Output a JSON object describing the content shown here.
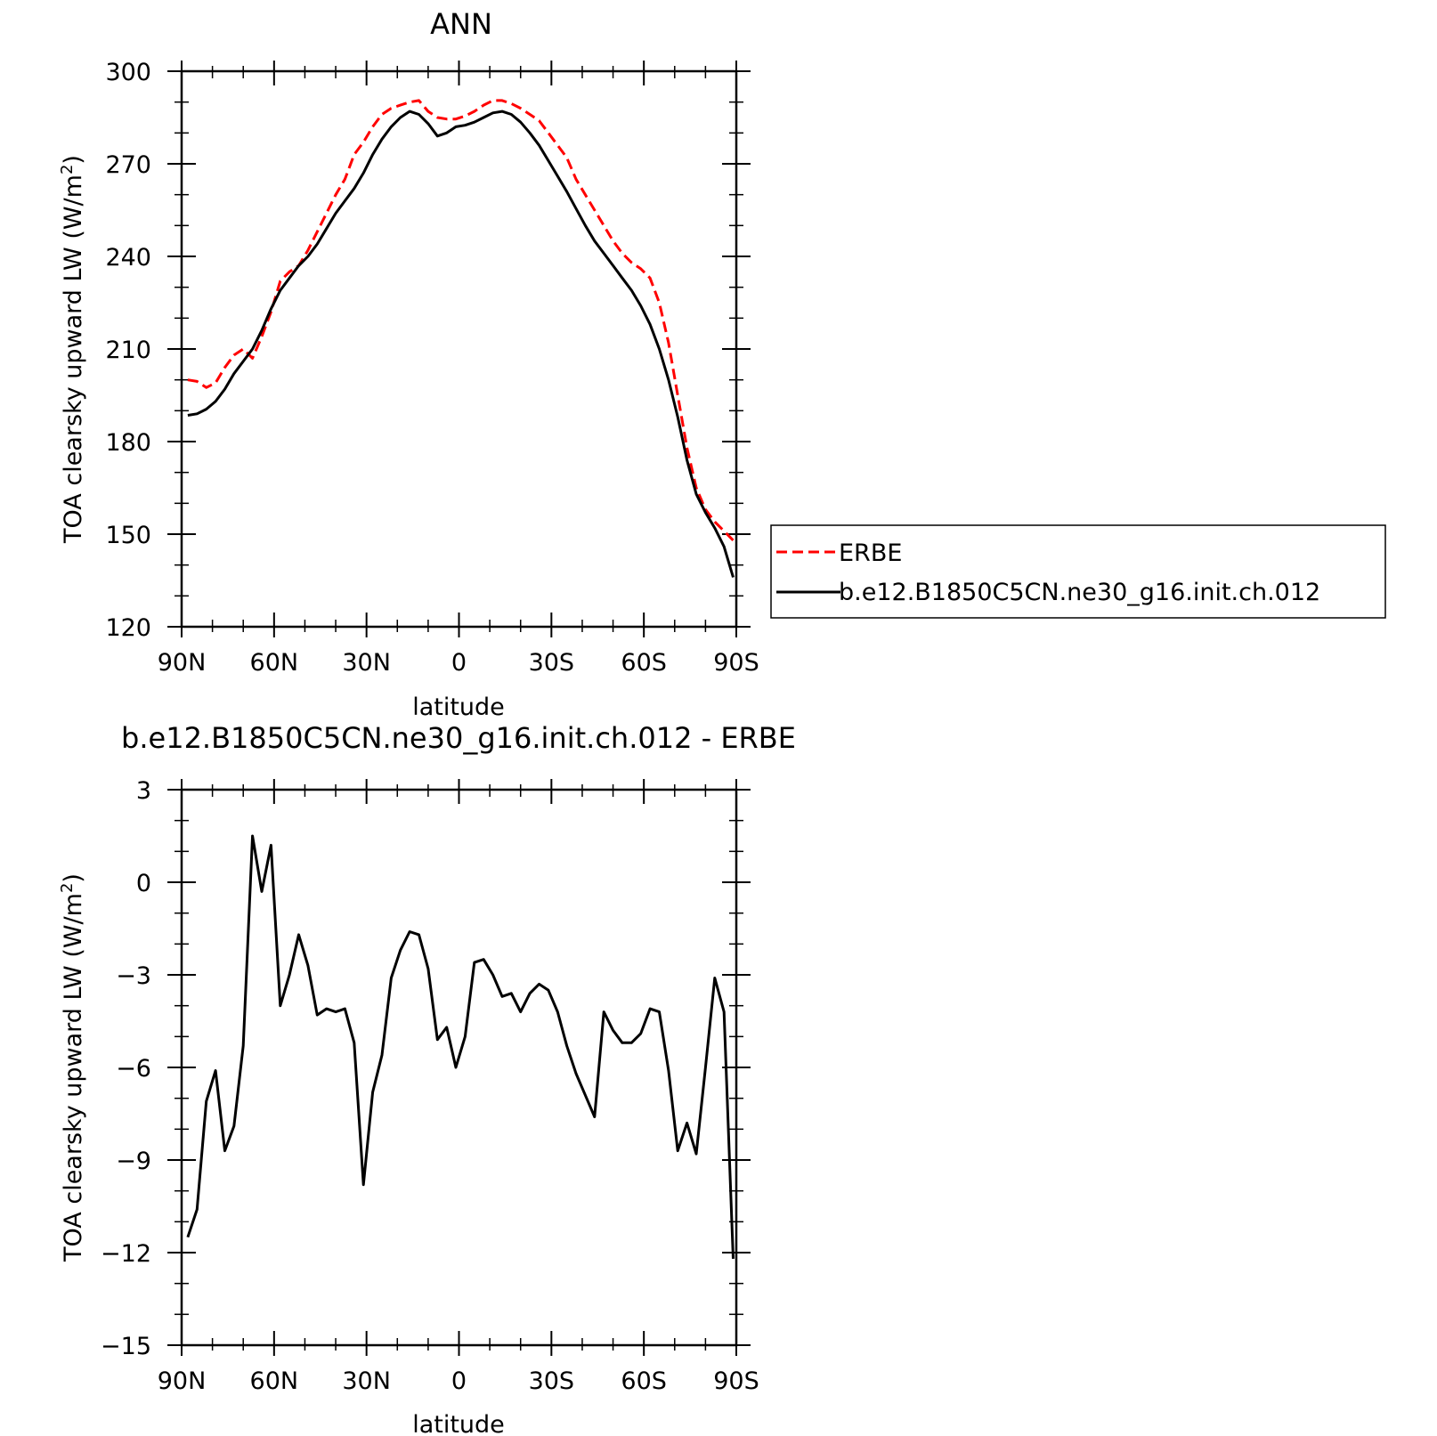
{
  "chart_data": [
    {
      "type": "line",
      "title": "ANN",
      "xlabel": "latitude",
      "ylabel": "TOA clearsky upward LW (W/m",
      "ylabel_sup": "2",
      "ylabel_close": ")",
      "xlim": [
        90,
        -90
      ],
      "ylim": [
        120,
        300
      ],
      "x_ticks": [
        90,
        60,
        30,
        0,
        -30,
        -60,
        -90
      ],
      "x_tick_labels": [
        "90N",
        "60N",
        "30N",
        "0",
        "30S",
        "60S",
        "90S"
      ],
      "y_ticks": [
        120,
        150,
        180,
        210,
        240,
        270,
        300
      ],
      "y_tick_labels": [
        "120",
        "150",
        "180",
        "210",
        "240",
        "270",
        "300"
      ],
      "legend": {
        "placement": "right",
        "entries": [
          "ERBE",
          "b.e12.B1850C5CN.ne30_g16.init.ch.012"
        ]
      },
      "series": [
        {
          "name": "ERBE",
          "color": "#ff0000",
          "dash": "dashed",
          "x": [
            88,
            85,
            82,
            79,
            76,
            73,
            70,
            67,
            64,
            61,
            58,
            55,
            52,
            49,
            46,
            43,
            40,
            37,
            34,
            31,
            28,
            25,
            22,
            19,
            16,
            13,
            10,
            7,
            4,
            1,
            -2,
            -5,
            -8,
            -11,
            -14,
            -17,
            -20,
            -23,
            -26,
            -29,
            -32,
            -35,
            -38,
            -41,
            -44,
            -47,
            -50,
            -53,
            -56,
            -59,
            -62,
            -65,
            -68,
            -71,
            -74,
            -77,
            -80,
            -83,
            -86,
            -89
          ],
          "y": [
            200,
            199.5,
            197.5,
            199,
            204,
            208,
            210,
            207,
            214,
            222,
            232,
            235,
            237,
            242,
            248,
            254,
            260,
            265,
            273,
            277,
            282,
            286,
            288,
            289,
            290,
            290.5,
            287,
            285,
            284.5,
            284.5,
            285.5,
            287,
            289,
            290.5,
            290.5,
            289.5,
            288,
            286,
            284,
            280,
            276,
            272,
            265,
            260,
            255,
            250,
            245,
            241,
            238,
            236,
            233,
            225,
            212,
            195,
            178,
            165,
            158,
            154,
            151,
            148
          ]
        },
        {
          "name": "b.e12.B1850C5CN.ne30_g16.init.ch.012",
          "color": "#000000",
          "dash": "solid",
          "x": [
            88,
            85,
            82,
            79,
            76,
            73,
            70,
            67,
            64,
            61,
            58,
            55,
            52,
            49,
            46,
            43,
            40,
            37,
            34,
            31,
            28,
            25,
            22,
            19,
            16,
            13,
            10,
            7,
            4,
            1,
            -2,
            -5,
            -8,
            -11,
            -14,
            -17,
            -20,
            -23,
            -26,
            -29,
            -32,
            -35,
            -38,
            -41,
            -44,
            -47,
            -50,
            -53,
            -56,
            -59,
            -62,
            -65,
            -68,
            -71,
            -74,
            -77,
            -80,
            -83,
            -86,
            -89
          ],
          "y": [
            188.5,
            189,
            190.5,
            193,
            197,
            202,
            206,
            210,
            216,
            223,
            229,
            233,
            237,
            240,
            244,
            249,
            254,
            258,
            262,
            267,
            273,
            278,
            282,
            285,
            287,
            286,
            283,
            279,
            280,
            282,
            282.5,
            283.5,
            285,
            286.5,
            287,
            286,
            283.5,
            280,
            276,
            271,
            266,
            261,
            255.5,
            250,
            245,
            241,
            237,
            233,
            229,
            224,
            218,
            210,
            200,
            188,
            174,
            163,
            157,
            152,
            146,
            136
          ]
        }
      ]
    },
    {
      "type": "line",
      "title": "b.e12.B1850C5CN.ne30_g16.init.ch.012 - ERBE",
      "xlabel": "latitude",
      "ylabel": "TOA clearsky upward LW (W/m",
      "ylabel_sup": "2",
      "ylabel_close": ")",
      "xlim": [
        90,
        -90
      ],
      "ylim": [
        -15,
        3
      ],
      "x_ticks": [
        90,
        60,
        30,
        0,
        -30,
        -60,
        -90
      ],
      "x_tick_labels": [
        "90N",
        "60N",
        "30N",
        "0",
        "30S",
        "60S",
        "90S"
      ],
      "y_ticks": [
        -15,
        -12,
        -9,
        -6,
        -3,
        0,
        3
      ],
      "y_tick_labels": [
        "−15",
        "−12",
        "−9",
        "−6",
        "−3",
        "0",
        "3"
      ],
      "series": [
        {
          "color": "#000000",
          "dash": "solid",
          "x": [
            88,
            85,
            82,
            79,
            76,
            73,
            70,
            67,
            64,
            61,
            58,
            55,
            52,
            49,
            46,
            43,
            40,
            37,
            34,
            31,
            28,
            25,
            22,
            19,
            16,
            13,
            10,
            7,
            4,
            1,
            -2,
            -5,
            -8,
            -11,
            -14,
            -17,
            -20,
            -23,
            -26,
            -29,
            -32,
            -35,
            -38,
            -41,
            -44,
            -47,
            -50,
            -53,
            -56,
            -59,
            -62,
            -65,
            -68,
            -71,
            -74,
            -77,
            -80,
            -83,
            -86,
            -89
          ],
          "y": [
            -11.5,
            -10.6,
            -7.1,
            -6.1,
            -8.7,
            -7.9,
            -5.3,
            1.5,
            -0.3,
            1.2,
            -4.0,
            -3.0,
            -1.7,
            -2.7,
            -4.3,
            -4.1,
            -4.2,
            -4.1,
            -5.2,
            -9.8,
            -6.8,
            -5.6,
            -3.1,
            -2.2,
            -1.6,
            -1.7,
            -2.8,
            -5.1,
            -4.7,
            -6.0,
            -5.0,
            -2.6,
            -2.5,
            -3.0,
            -3.7,
            -3.6,
            -4.2,
            -3.6,
            -3.3,
            -3.5,
            -4.2,
            -5.3,
            -6.2,
            -6.9,
            -7.6,
            -4.2,
            -4.8,
            -5.2,
            -5.2,
            -4.9,
            -4.1,
            -4.2,
            -6.1,
            -8.7,
            -7.8,
            -8.8,
            -6.0,
            -3.1,
            -4.2,
            -12.2
          ]
        }
      ]
    }
  ]
}
